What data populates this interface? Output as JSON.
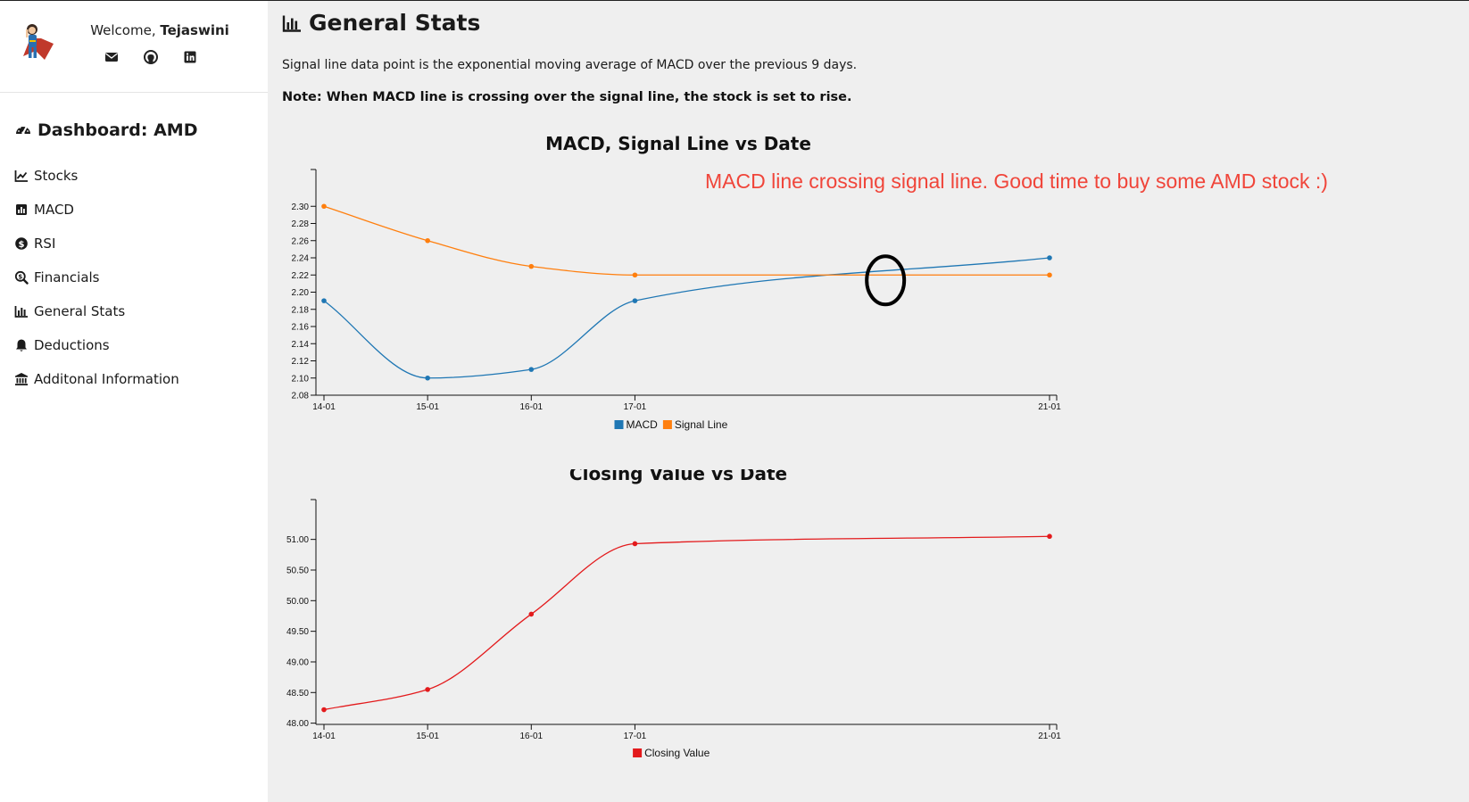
{
  "user": {
    "welcome_prefix": "Welcome, ",
    "name": "Tejaswini"
  },
  "social_icons": [
    "envelope-icon",
    "github-icon",
    "linkedin-icon"
  ],
  "sidebar": {
    "dashboard_title": "Dashboard: AMD",
    "items": [
      {
        "label": "Stocks",
        "icon": "line-chart-icon"
      },
      {
        "label": "MACD",
        "icon": "bar-chart-icon"
      },
      {
        "label": "RSI",
        "icon": "dollar-circle-icon"
      },
      {
        "label": "Financials",
        "icon": "search-dollar-icon"
      },
      {
        "label": "General Stats",
        "icon": "chart-bar-icon"
      },
      {
        "label": "Deductions",
        "icon": "bell-icon"
      },
      {
        "label": "Additonal Information",
        "icon": "bank-icon"
      }
    ]
  },
  "main": {
    "title": "General Stats",
    "description": "Signal line data point is the exponential moving average of MACD over the previous 9 days.",
    "note": "Note: When MACD line is crossing over the signal line, the stock is set to rise."
  },
  "colors": {
    "macd": "#1f77b4",
    "signal": "#ff7f0e",
    "closing": "#e31a1c",
    "annotation": "#f0453a"
  },
  "chart_data": [
    {
      "type": "line",
      "title": "MACD, Signal Line vs Date",
      "categories": [
        "14-01",
        "15-01",
        "16-01",
        "17-01",
        "21-01"
      ],
      "x_days": [
        14,
        15,
        16,
        17,
        21
      ],
      "series": [
        {
          "name": "MACD",
          "values": [
            2.19,
            2.1,
            2.11,
            2.19,
            2.24
          ]
        },
        {
          "name": "Signal Line",
          "values": [
            2.3,
            2.26,
            2.23,
            2.22,
            2.22
          ]
        }
      ],
      "ylim": [
        2.08,
        2.32
      ],
      "yticks": [
        "2.08",
        "2.10",
        "2.12",
        "2.14",
        "2.16",
        "2.18",
        "2.20",
        "2.22",
        "2.24",
        "2.26",
        "2.28",
        "2.30"
      ],
      "annotation": "MACD line crossing signal line. Good time to buy some AMD stock :)",
      "legend": "bottom-center",
      "grid": false
    },
    {
      "type": "line",
      "title": "Closing Value vs Date",
      "categories": [
        "14-01",
        "15-01",
        "16-01",
        "17-01",
        "21-01"
      ],
      "x_days": [
        14,
        15,
        16,
        17,
        21
      ],
      "series": [
        {
          "name": "Closing Value",
          "values": [
            48.22,
            48.55,
            49.78,
            50.93,
            51.05
          ]
        }
      ],
      "ylim": [
        47.98,
        51.33
      ],
      "yticks": [
        "48.00",
        "48.50",
        "49.00",
        "49.50",
        "50.00",
        "50.50",
        "51.00"
      ],
      "legend": "bottom-center",
      "grid": false
    }
  ]
}
